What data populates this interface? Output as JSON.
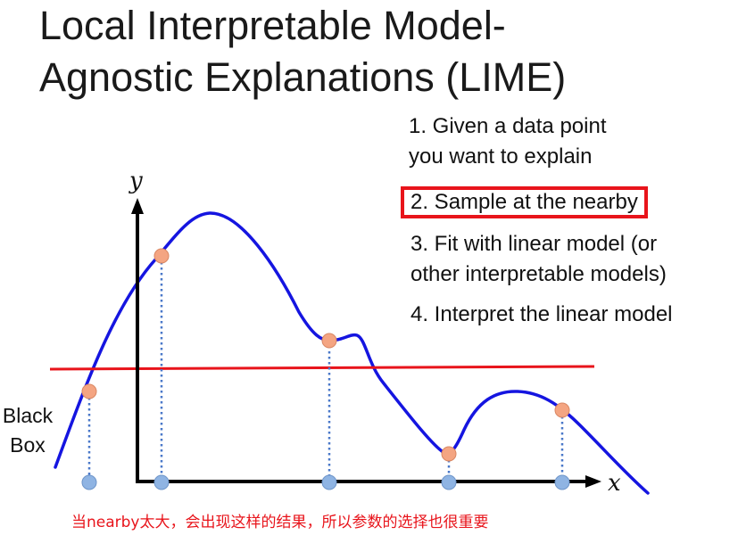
{
  "title": {
    "line1": "Local Interpretable Model-",
    "line2": "Agnostic Explanations (LIME)"
  },
  "steps": [
    {
      "lines": [
        "1. Given a data point",
        "you want to explain"
      ],
      "highlighted": false
    },
    {
      "lines": [
        "2. Sample at the nearby"
      ],
      "highlighted": true
    },
    {
      "lines": [
        "3. Fit with linear model (or",
        "other interpretable models)"
      ],
      "highlighted": false
    },
    {
      "lines": [
        "4. Interpret the linear model"
      ],
      "highlighted": false
    }
  ],
  "black_box_label": {
    "line1": "Black",
    "line2": "Box"
  },
  "axes": {
    "x_label": "x",
    "y_label": "y"
  },
  "note": "当nearby太大，会出现这样的结果，所以参数的选择也很重要",
  "colors": {
    "curve": "#1515e0",
    "linear_fit": "#e8141b",
    "sample_point": "#f4a582",
    "projection_point": "#8fb4e3",
    "highlight_box": "#e8141b",
    "note": "#e8141b"
  },
  "sample_points_count": 5
}
